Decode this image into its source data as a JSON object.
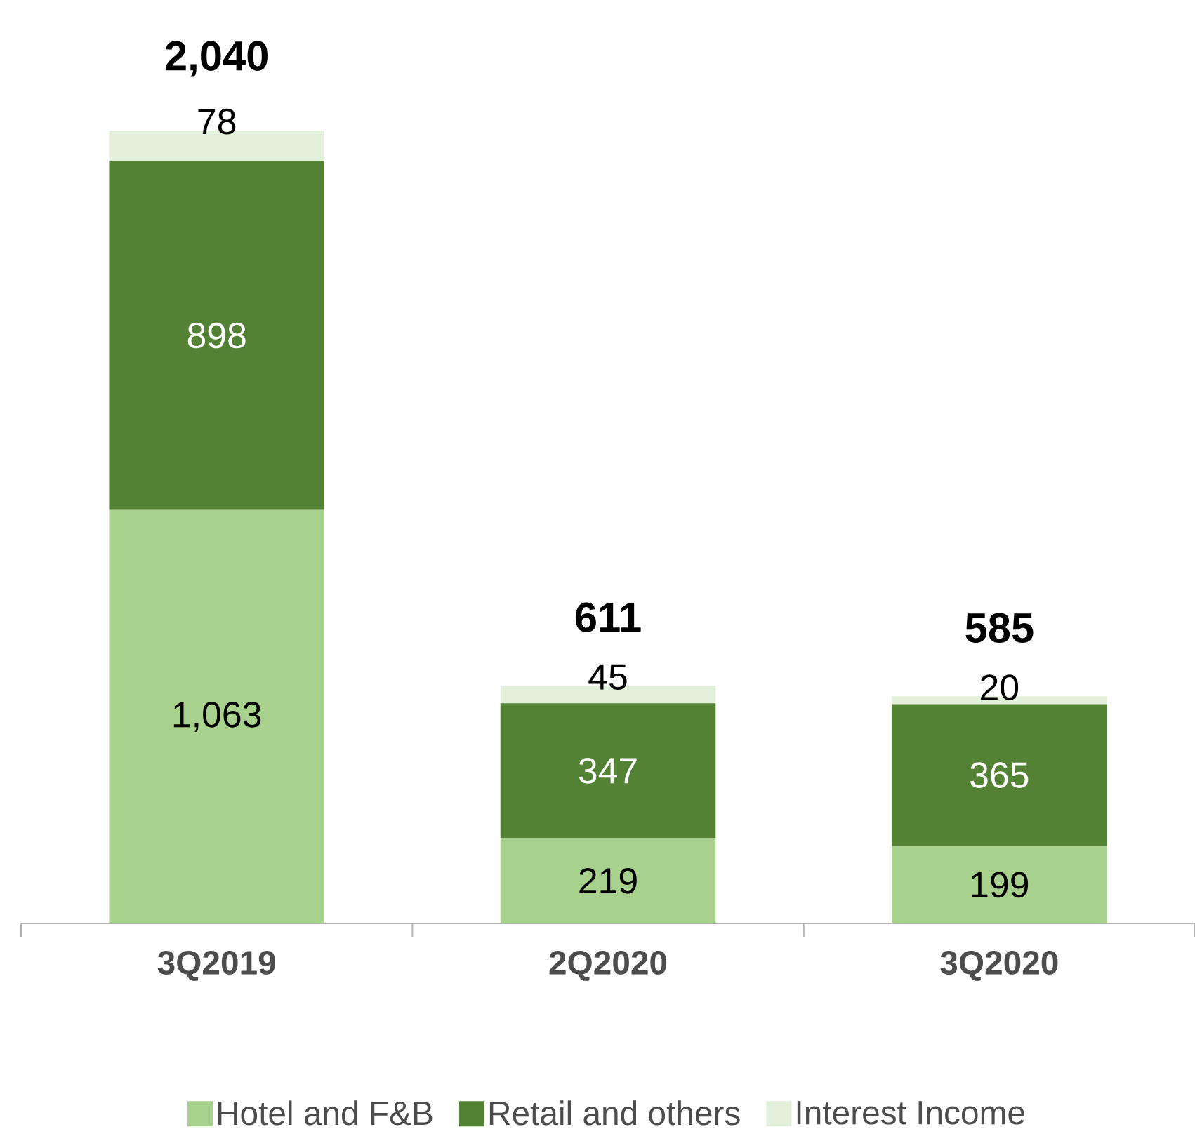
{
  "chart_data": {
    "type": "bar",
    "stacked": true,
    "legend": "bottom",
    "categories": [
      "3Q2019",
      "2Q2020",
      "3Q2020"
    ],
    "series": [
      {
        "name": "Hotel and F&B",
        "color": "#a9d18e",
        "values": [
          1063,
          219,
          199
        ],
        "value_labels": [
          "1,063",
          "219",
          "199"
        ]
      },
      {
        "name": "Retail and others",
        "color": "#548235",
        "values": [
          898,
          347,
          365
        ],
        "value_labels": [
          "898",
          "347",
          "365"
        ]
      },
      {
        "name": "Interest Income",
        "color": "#e2efda",
        "values": [
          78,
          45,
          20
        ],
        "value_labels": [
          "78",
          "45",
          "20"
        ]
      }
    ],
    "totals": [
      "2,040",
      "611",
      "585"
    ]
  }
}
